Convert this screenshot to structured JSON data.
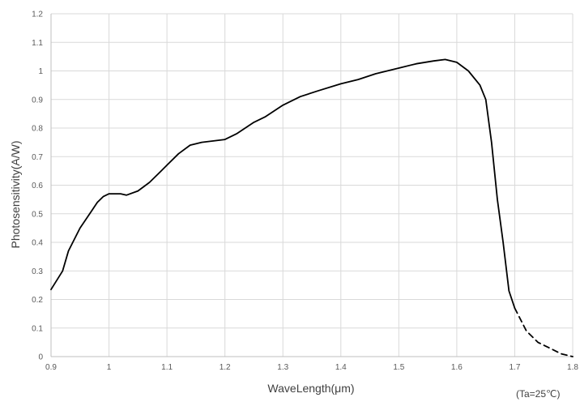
{
  "chart_data": {
    "type": "line",
    "title": "",
    "xlabel": "WaveLength(μm)",
    "ylabel": "Photosensitivity(A/W)",
    "note": "(Ta=25℃)",
    "xlim": [
      0.9,
      1.8
    ],
    "ylim": [
      0,
      1.2
    ],
    "x_ticks": [
      "0.9",
      "1",
      "1.1",
      "1.2",
      "1.3",
      "1.4",
      "1.5",
      "1.6",
      "1.7",
      "1.8"
    ],
    "y_ticks": [
      "0",
      "0.1",
      "0.2",
      "0.3",
      "0.4",
      "0.5",
      "0.6",
      "0.7",
      "0.8",
      "0.9",
      "1",
      "1.1",
      "1.2"
    ],
    "grid": true,
    "series": [
      {
        "style": "solid",
        "color": "#000000",
        "x": [
          0.9,
          0.92,
          0.93,
          0.95,
          0.97,
          0.98,
          0.99,
          1.0,
          1.02,
          1.03,
          1.05,
          1.07,
          1.09,
          1.1,
          1.12,
          1.14,
          1.16,
          1.18,
          1.2,
          1.22,
          1.25,
          1.27,
          1.3,
          1.33,
          1.36,
          1.4,
          1.43,
          1.46,
          1.5,
          1.53,
          1.56,
          1.58,
          1.6,
          1.62,
          1.64,
          1.65,
          1.66,
          1.67,
          1.68,
          1.69,
          1.7
        ],
        "y": [
          0.235,
          0.3,
          0.37,
          0.45,
          0.51,
          0.54,
          0.56,
          0.57,
          0.57,
          0.565,
          0.58,
          0.61,
          0.65,
          0.67,
          0.71,
          0.74,
          0.75,
          0.755,
          0.76,
          0.78,
          0.82,
          0.84,
          0.88,
          0.91,
          0.93,
          0.955,
          0.97,
          0.99,
          1.01,
          1.025,
          1.035,
          1.04,
          1.03,
          1.0,
          0.95,
          0.9,
          0.75,
          0.55,
          0.4,
          0.23,
          0.17
        ]
      },
      {
        "style": "dashed",
        "color": "#000000",
        "x": [
          1.7,
          1.72,
          1.74,
          1.76,
          1.78,
          1.8
        ],
        "y": [
          0.17,
          0.09,
          0.05,
          0.03,
          0.01,
          0.0
        ]
      }
    ]
  }
}
